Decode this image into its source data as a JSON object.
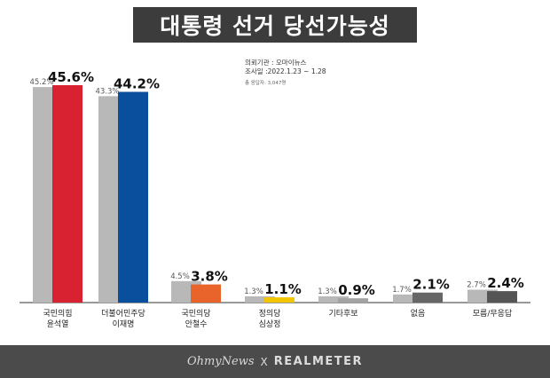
{
  "header": {
    "title": "대통령 선거 당선가능성"
  },
  "survey": {
    "client": "의뢰기관 : 오마이뉴스",
    "period": "조사일 :2022.1.23 ~ 1.28",
    "respondents": "총 응답자: 3,047명"
  },
  "footer": {
    "left": "OhmyNews",
    "separator": "X",
    "right": "REALMETER"
  },
  "chart_data": {
    "type": "bar",
    "categories": [
      [
        "국민의힘",
        "윤석열"
      ],
      [
        "더불어민주당",
        "이재명"
      ],
      [
        "국민의당",
        "안철수"
      ],
      [
        "정의당",
        "심상정"
      ],
      [
        "기타후보"
      ],
      [
        "없음"
      ],
      [
        "모름/무응답"
      ]
    ],
    "series": [
      {
        "values": [
          45.2,
          43.3,
          4.5,
          1.3,
          1.3,
          1.7,
          2.7
        ],
        "labels": [
          "45.2%",
          "43.3%",
          "4.5%",
          "1.3%",
          "1.3%",
          "1.7%",
          "2.7%"
        ],
        "color": "#b8b8b8"
      },
      {
        "values": [
          45.6,
          44.2,
          3.8,
          1.1,
          0.9,
          2.1,
          2.4
        ],
        "labels": [
          "45.6%",
          "44.2%",
          "3.8%",
          "1.1%",
          "0.9%",
          "2.1%",
          "2.4%"
        ],
        "colors": [
          "#d92231",
          "#0a4f9e",
          "#e8642a",
          "#f2c500",
          "#a3a3a3",
          "#666666",
          "#555555"
        ]
      }
    ],
    "ylim": [
      0,
      50
    ],
    "grid": false,
    "legend": "none"
  }
}
